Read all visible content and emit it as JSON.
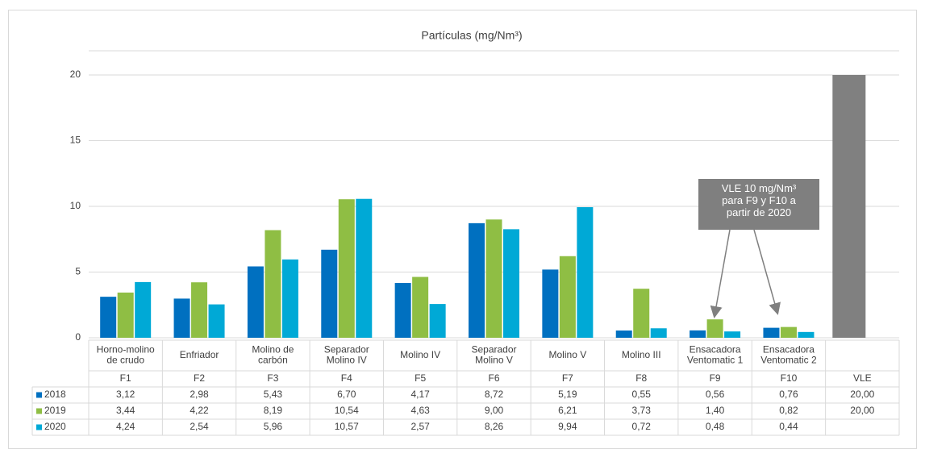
{
  "chart_data": {
    "type": "bar",
    "title": "Partículas (mg/Nm³)",
    "categories": [
      "F1",
      "F2",
      "F3",
      "F4",
      "F5",
      "F6",
      "F7",
      "F8",
      "F9",
      "F10",
      "VLE"
    ],
    "descriptions": [
      "Horno-molino de crudo",
      "Enfriador",
      "Molino de carbón",
      "Separador Molino IV",
      "Molino IV",
      "Separador Molino V",
      "Molino V",
      "Molino III",
      "Ensacadora Ventomatic 1",
      "Ensacadora Ventomatic 2",
      null
    ],
    "series": [
      {
        "name": "2018",
        "color": "#0070c0",
        "values": [
          3.12,
          2.98,
          5.43,
          6.7,
          4.17,
          8.72,
          5.19,
          0.55,
          0.56,
          0.76,
          20.0
        ],
        "value_labels": [
          "3,12",
          "2,98",
          "5,43",
          "6,70",
          "4,17",
          "8,72",
          "5,19",
          "0,55",
          "0,56",
          "0,76",
          "20,00"
        ]
      },
      {
        "name": "2019",
        "color": "#8fbe44",
        "values": [
          3.44,
          4.22,
          8.19,
          10.54,
          4.63,
          9.0,
          6.21,
          3.73,
          1.4,
          0.82,
          20.0
        ],
        "value_labels": [
          "3,44",
          "4,22",
          "8,19",
          "10,54",
          "4,63",
          "9,00",
          "6,21",
          "3,73",
          "1,40",
          "0,82",
          "20,00"
        ]
      },
      {
        "name": "2020",
        "color": "#00a9d6",
        "values": [
          4.24,
          2.54,
          5.96,
          10.57,
          2.57,
          8.26,
          9.94,
          0.72,
          0.48,
          0.44,
          null
        ],
        "value_labels": [
          "4,24",
          "2,54",
          "5,96",
          "10,57",
          "2,57",
          "8,26",
          "9,94",
          "0,72",
          "0,48",
          "0,44",
          null
        ]
      }
    ],
    "highlight_category": "VLE",
    "highlight_color": "#808080",
    "annotation": "VLE 10 mg/Nm³ para F9 y F10 a partir de 2020",
    "annotation_color": "#7f7f7f",
    "ylim": [
      0,
      20
    ],
    "yticks": [
      0,
      5,
      10,
      15,
      20
    ],
    "grid": true
  }
}
